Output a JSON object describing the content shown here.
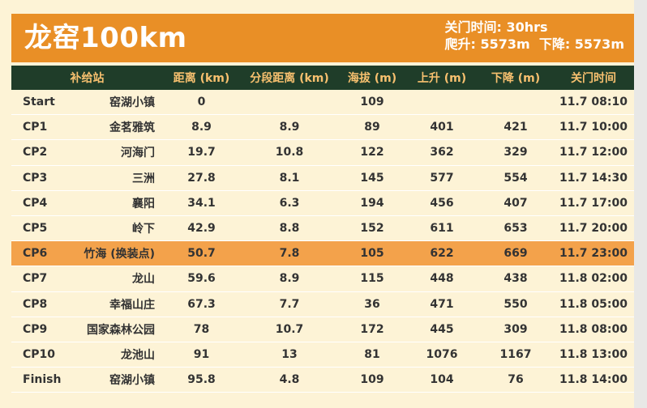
{
  "header": {
    "title": "龙窑100km",
    "cutoff": "关门时间: 30hrs",
    "elevation": "爬升: 5573m  下降: 5573m"
  },
  "table": {
    "columns": [
      "补给站",
      "距离 (km)",
      "分段距离 (km)",
      "海拔 (m)",
      "上升 (m)",
      "下降 (m)",
      "关门时间"
    ],
    "rows": [
      {
        "code": "Start",
        "name": "窑湖小镇",
        "dist": "0",
        "seg": "",
        "alt": "109",
        "up": "",
        "down": "",
        "cutoff": "11.7 08:10",
        "highlight": false
      },
      {
        "code": "CP1",
        "name": "金茗雅筑",
        "dist": "8.9",
        "seg": "8.9",
        "alt": "89",
        "up": "401",
        "down": "421",
        "cutoff": "11.7 10:00",
        "highlight": false
      },
      {
        "code": "CP2",
        "name": "河海门",
        "dist": "19.7",
        "seg": "10.8",
        "alt": "122",
        "up": "362",
        "down": "329",
        "cutoff": "11.7 12:00",
        "highlight": false
      },
      {
        "code": "CP3",
        "name": "三洲",
        "dist": "27.8",
        "seg": "8.1",
        "alt": "145",
        "up": "577",
        "down": "554",
        "cutoff": "11.7 14:30",
        "highlight": false
      },
      {
        "code": "CP4",
        "name": "襄阳",
        "dist": "34.1",
        "seg": "6.3",
        "alt": "194",
        "up": "456",
        "down": "407",
        "cutoff": "11.7 17:00",
        "highlight": false
      },
      {
        "code": "CP5",
        "name": "岭下",
        "dist": "42.9",
        "seg": "8.8",
        "alt": "152",
        "up": "611",
        "down": "653",
        "cutoff": "11.7 20:00",
        "highlight": false
      },
      {
        "code": "CP6",
        "name": "竹海 (换装点)",
        "dist": "50.7",
        "seg": "7.8",
        "alt": "105",
        "up": "622",
        "down": "669",
        "cutoff": "11.7 23:00",
        "highlight": true
      },
      {
        "code": "CP7",
        "name": "龙山",
        "dist": "59.6",
        "seg": "8.9",
        "alt": "115",
        "up": "448",
        "down": "438",
        "cutoff": "11.8 02:00",
        "highlight": false
      },
      {
        "code": "CP8",
        "name": "幸福山庄",
        "dist": "67.3",
        "seg": "7.7",
        "alt": "36",
        "up": "471",
        "down": "550",
        "cutoff": "11.8 05:00",
        "highlight": false
      },
      {
        "code": "CP9",
        "name": "国家森林公园",
        "dist": "78",
        "seg": "10.7",
        "alt": "172",
        "up": "445",
        "down": "309",
        "cutoff": "11.8 08:00",
        "highlight": false
      },
      {
        "code": "CP10",
        "name": "龙池山",
        "dist": "91",
        "seg": "13",
        "alt": "81",
        "up": "1076",
        "down": "1167",
        "cutoff": "11.8 13:00",
        "highlight": false
      },
      {
        "code": "Finish",
        "name": "窑湖小镇",
        "dist": "95.8",
        "seg": "4.8",
        "alt": "109",
        "up": "104",
        "down": "76",
        "cutoff": "11.8 14:00",
        "highlight": false
      }
    ]
  }
}
